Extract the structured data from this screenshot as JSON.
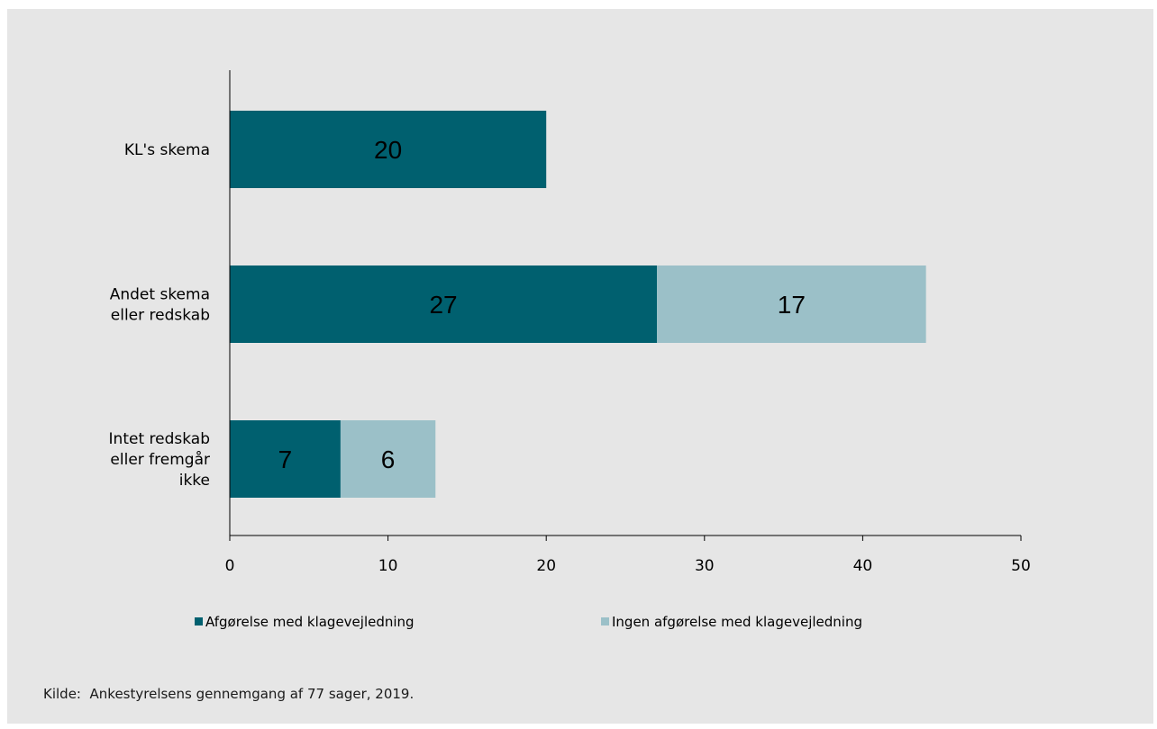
{
  "chart_data": {
    "type": "bar",
    "orientation": "horizontal",
    "stacked": true,
    "categories": [
      [
        "KL's skema"
      ],
      [
        "Andet skema",
        "eller redskab"
      ],
      [
        "Intet redskab",
        "eller fremgår",
        "ikke"
      ]
    ],
    "series": [
      {
        "name": "Afgørelse med klagevejledning",
        "values": [
          20,
          27,
          7
        ],
        "color": "#00606f"
      },
      {
        "name": "Ingen afgørelse med klagevejledning",
        "values": [
          0,
          17,
          6
        ],
        "color": "#9bc0c8"
      }
    ],
    "data_labels": [
      [
        "20",
        "27",
        "7"
      ],
      [
        null,
        "17",
        "6"
      ]
    ],
    "x_ticks": [
      0,
      10,
      20,
      30,
      40,
      50
    ],
    "xlim": [
      0,
      50
    ],
    "grid": false,
    "legend_position": "bottom"
  },
  "source_label": "Kilde:",
  "source_text": "Ankestyrelsens gennemgang af 77 sager, 2019."
}
